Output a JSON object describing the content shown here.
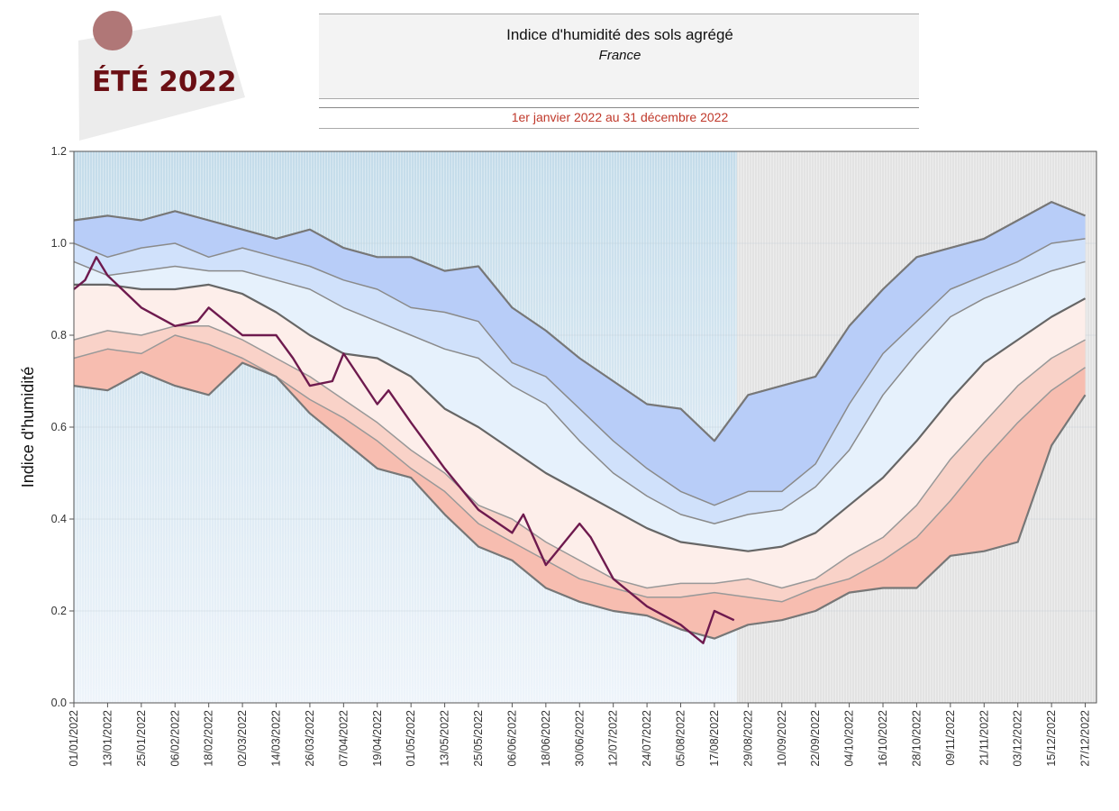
{
  "badge": {
    "text": "ÉTÉ 2022",
    "circle_color": "#b07777",
    "text_color": "#6b0f14"
  },
  "header": {
    "title": "Indice d'humidité des sols agrégé",
    "subtitle": "France",
    "period": "1er janvier 2022 au 31 décembre 2022",
    "period_color": "#c0392b"
  },
  "chart_data": {
    "type": "area",
    "title": "Indice d'humidité des sols agrégé",
    "subtitle": "France",
    "xlabel": "",
    "ylabel": "Indice d'humidité",
    "ylim": [
      0,
      1.2
    ],
    "yticks": [
      "0.0",
      "0.2",
      "0.4",
      "0.6",
      "0.8",
      "1.0",
      "1.2"
    ],
    "xlim": [
      "2022-01-01",
      "2022-12-31"
    ],
    "xtick_labels": [
      "01/01/2022",
      "13/01/2022",
      "25/01/2022",
      "06/02/2022",
      "18/02/2022",
      "02/03/2022",
      "14/03/2022",
      "26/03/2022",
      "07/04/2022",
      "19/04/2022",
      "01/05/2022",
      "13/05/2022",
      "25/05/2022",
      "06/06/2022",
      "18/06/2022",
      "30/06/2022",
      "12/07/2022",
      "24/07/2022",
      "05/08/2022",
      "17/08/2022",
      "29/08/2022",
      "10/09/2022",
      "22/09/2022",
      "04/10/2022",
      "16/10/2022",
      "28/10/2022",
      "09/11/2022",
      "21/11/2022",
      "03/12/2022",
      "15/12/2022",
      "27/12/2022"
    ],
    "grid": true,
    "observed_period_end": "2022-08-25",
    "background_colors": {
      "observed": "#c8dfeb",
      "future": "#e3e3e3"
    },
    "band_dates": [
      "2022-01-01",
      "2022-01-13",
      "2022-01-25",
      "2022-02-06",
      "2022-02-18",
      "2022-03-02",
      "2022-03-14",
      "2022-03-26",
      "2022-04-07",
      "2022-04-19",
      "2022-05-01",
      "2022-05-13",
      "2022-05-25",
      "2022-06-06",
      "2022-06-18",
      "2022-06-30",
      "2022-07-12",
      "2022-07-24",
      "2022-08-05",
      "2022-08-17",
      "2022-08-29",
      "2022-09-10",
      "2022-09-22",
      "2022-10-04",
      "2022-10-16",
      "2022-10-28",
      "2022-11-09",
      "2022-11-21",
      "2022-12-03",
      "2022-12-15",
      "2022-12-27"
    ],
    "bands": [
      {
        "values": [
          1.05,
          1.06,
          1.05,
          1.07,
          1.05,
          1.03,
          1.01,
          1.03,
          0.99,
          0.97,
          0.97,
          0.94,
          0.95,
          0.86,
          0.81,
          0.75,
          0.7,
          0.65,
          0.64,
          0.57,
          0.67,
          0.69,
          0.71,
          0.82,
          0.9,
          0.97,
          0.99,
          1.01,
          1.05,
          1.09,
          1.06
        ],
        "fill": "#b8cdf8",
        "stroke": "#777777"
      },
      {
        "values": [
          1.0,
          0.97,
          0.99,
          1.0,
          0.97,
          0.99,
          0.97,
          0.95,
          0.92,
          0.9,
          0.86,
          0.85,
          0.83,
          0.74,
          0.71,
          0.64,
          0.57,
          0.51,
          0.46,
          0.43,
          0.46,
          0.46,
          0.52,
          0.65,
          0.76,
          0.83,
          0.9,
          0.93,
          0.96,
          1.0,
          1.01
        ],
        "fill": "#d0e1fb",
        "stroke": "#8a8a8a"
      },
      {
        "values": [
          0.96,
          0.93,
          0.94,
          0.95,
          0.94,
          0.94,
          0.92,
          0.9,
          0.86,
          0.83,
          0.8,
          0.77,
          0.75,
          0.69,
          0.65,
          0.57,
          0.5,
          0.45,
          0.41,
          0.39,
          0.41,
          0.42,
          0.47,
          0.55,
          0.67,
          0.76,
          0.84,
          0.88,
          0.91,
          0.94,
          0.96
        ],
        "fill": "#e6f1fc",
        "stroke": "#8a8a8a"
      },
      {
        "values": [
          0.91,
          0.91,
          0.9,
          0.9,
          0.91,
          0.89,
          0.85,
          0.8,
          0.76,
          0.75,
          0.71,
          0.64,
          0.6,
          0.55,
          0.5,
          0.46,
          0.42,
          0.38,
          0.35,
          0.34,
          0.33,
          0.34,
          0.37,
          0.43,
          0.49,
          0.57,
          0.66,
          0.74,
          0.79,
          0.84,
          0.88
        ],
        "fill": "#fdeeea",
        "stroke": "#666666"
      },
      {
        "values": [
          0.79,
          0.81,
          0.8,
          0.82,
          0.82,
          0.79,
          0.75,
          0.71,
          0.66,
          0.61,
          0.55,
          0.5,
          0.43,
          0.4,
          0.35,
          0.31,
          0.27,
          0.25,
          0.26,
          0.26,
          0.27,
          0.25,
          0.27,
          0.32,
          0.36,
          0.43,
          0.53,
          0.61,
          0.69,
          0.75,
          0.79
        ],
        "fill": "#f9d2c8",
        "stroke": "#999999"
      },
      {
        "values": [
          0.75,
          0.77,
          0.76,
          0.8,
          0.78,
          0.75,
          0.71,
          0.66,
          0.62,
          0.57,
          0.51,
          0.46,
          0.39,
          0.35,
          0.31,
          0.27,
          0.25,
          0.23,
          0.23,
          0.24,
          0.23,
          0.22,
          0.25,
          0.27,
          0.31,
          0.36,
          0.44,
          0.53,
          0.61,
          0.68,
          0.73
        ],
        "fill": "#f7bdb0",
        "stroke": "#999999"
      },
      {
        "values": [
          0.69,
          0.68,
          0.72,
          0.69,
          0.67,
          0.74,
          0.71,
          0.63,
          0.57,
          0.51,
          0.49,
          0.41,
          0.34,
          0.31,
          0.25,
          0.22,
          0.2,
          0.19,
          0.16,
          0.14,
          0.17,
          0.18,
          0.2,
          0.24,
          0.25,
          0.25,
          0.32,
          0.33,
          0.35,
          0.56,
          0.67
        ],
        "fill": null,
        "stroke": "#777777"
      }
    ],
    "series": [
      {
        "x": [
          "2022-01-01",
          "2022-01-05",
          "2022-01-09",
          "2022-01-13",
          "2022-01-25",
          "2022-02-06",
          "2022-02-14",
          "2022-02-18",
          "2022-03-02",
          "2022-03-14",
          "2022-03-20",
          "2022-03-26",
          "2022-04-03",
          "2022-04-07",
          "2022-04-19",
          "2022-04-23",
          "2022-05-01",
          "2022-05-13",
          "2022-05-25",
          "2022-06-06",
          "2022-06-10",
          "2022-06-18",
          "2022-06-22",
          "2022-06-30",
          "2022-07-04",
          "2022-07-12",
          "2022-07-24",
          "2022-08-05",
          "2022-08-13",
          "2022-08-17",
          "2022-08-24"
        ],
        "values": [
          0.9,
          0.92,
          0.97,
          0.93,
          0.86,
          0.82,
          0.83,
          0.86,
          0.8,
          0.8,
          0.75,
          0.69,
          0.7,
          0.76,
          0.65,
          0.68,
          0.61,
          0.51,
          0.42,
          0.37,
          0.41,
          0.3,
          0.33,
          0.39,
          0.36,
          0.27,
          0.21,
          0.17,
          0.13,
          0.2,
          0.18
        ],
        "color": "#6e1a4e"
      }
    ]
  }
}
